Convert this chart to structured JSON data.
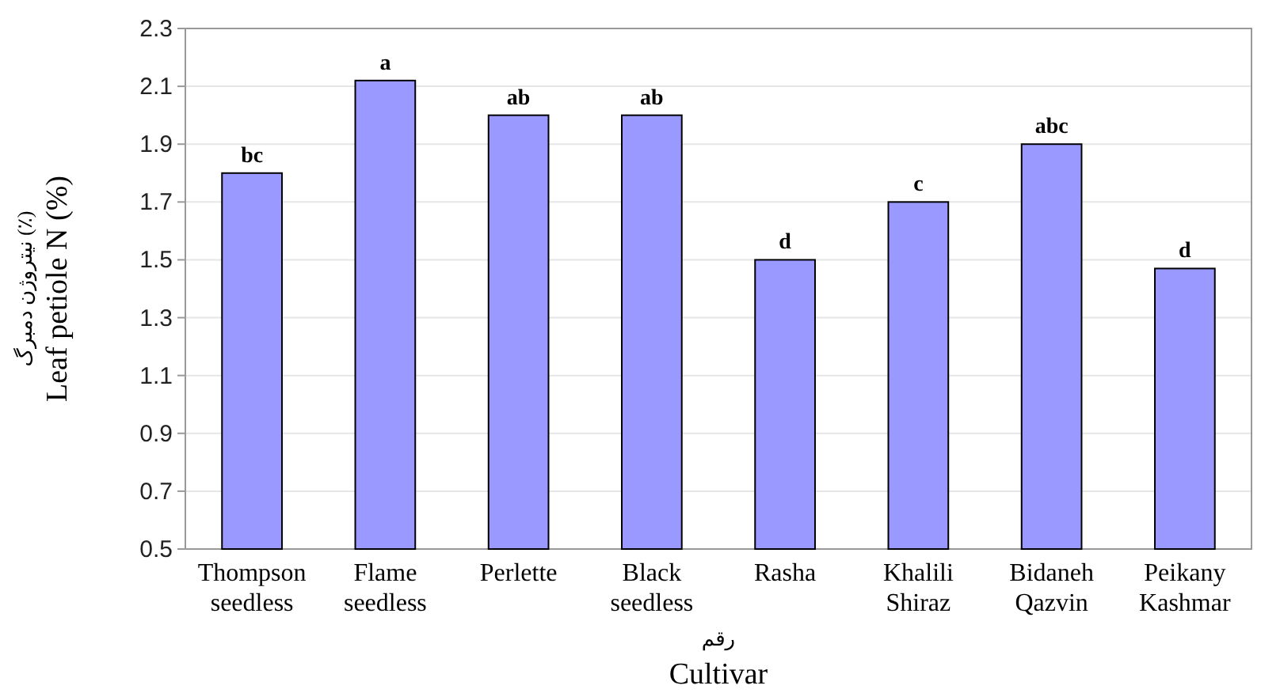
{
  "chart_data": {
    "type": "bar",
    "xlabel": "رقم\nCultivar",
    "ylabel": "نیتروژن دمبرگ (٪)\nLeaf petiole N (%)",
    "categories": [
      "Thompson seedless",
      "Flame seedless",
      "Perlette",
      "Black seedless",
      "Rasha",
      "Khalili Shiraz",
      "Bidaneh Qazvin",
      "Peikany Kashmar"
    ],
    "values": [
      1.8,
      2.12,
      2.0,
      2.0,
      1.5,
      1.7,
      1.9,
      1.47
    ],
    "value_labels": [
      "bc",
      "a",
      "ab",
      "ab",
      "d",
      "c",
      "abc",
      "d"
    ],
    "color": "#9999ff",
    "ylim": [
      0.5,
      2.3
    ],
    "yticks": [
      {
        "value": 0.5,
        "label": "0.5"
      },
      {
        "value": 0.7,
        "label": "0.7"
      },
      {
        "value": 0.9,
        "label": "0.9"
      },
      {
        "value": 1.1,
        "label": "1.1"
      },
      {
        "value": 1.3,
        "label": "1.3"
      },
      {
        "value": 1.5,
        "label": "1.5"
      },
      {
        "value": 1.7,
        "label": "1.7"
      },
      {
        "value": 1.9,
        "label": "1.9"
      },
      {
        "value": 2.1,
        "label": "2.1"
      },
      {
        "value": 2.3,
        "label": "2.3"
      }
    ],
    "grid": "y"
  }
}
